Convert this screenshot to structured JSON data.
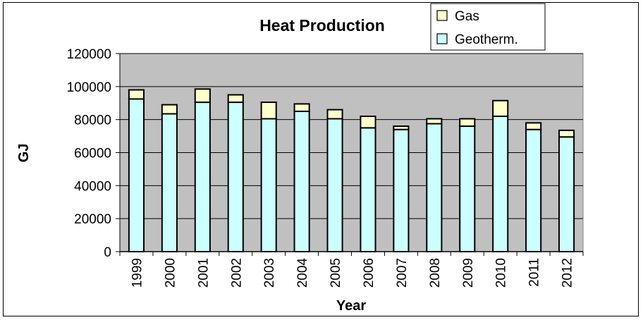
{
  "chart_data": {
    "type": "bar",
    "stacked": true,
    "title": "Heat Production",
    "xlabel": "Year",
    "ylabel": "GJ",
    "ylim": [
      0,
      120000
    ],
    "yticks": [
      0,
      20000,
      40000,
      60000,
      80000,
      100000,
      120000
    ],
    "grid": true,
    "legend_position": "top-right",
    "categories": [
      "1999",
      "2000",
      "2001",
      "2002",
      "2003",
      "2004",
      "2005",
      "2006",
      "2007",
      "2008",
      "2009",
      "2010",
      "2011",
      "2012"
    ],
    "series": [
      {
        "name": "Geotherm.",
        "color": "#ccffff",
        "values": [
          92500,
          83500,
          90500,
          90500,
          80500,
          85000,
          80500,
          75000,
          74000,
          77500,
          76000,
          82000,
          74000,
          69500
        ]
      },
      {
        "name": "Gas",
        "color": "#ffffcc",
        "values": [
          5500,
          5500,
          8000,
          4500,
          10000,
          4500,
          5500,
          7000,
          2000,
          3000,
          4500,
          9500,
          4000,
          4000
        ]
      }
    ],
    "plot_background": "#c0c0c0"
  }
}
